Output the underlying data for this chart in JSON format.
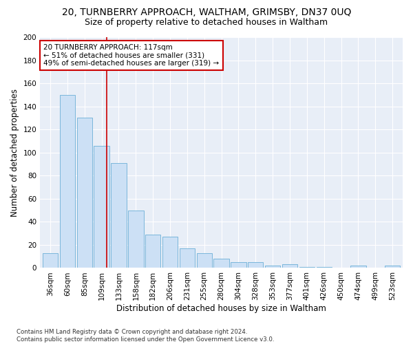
{
  "title": "20, TURNBERRY APPROACH, WALTHAM, GRIMSBY, DN37 0UQ",
  "subtitle": "Size of property relative to detached houses in Waltham",
  "xlabel": "Distribution of detached houses by size in Waltham",
  "ylabel": "Number of detached properties",
  "categories": [
    "36sqm",
    "60sqm",
    "85sqm",
    "109sqm",
    "133sqm",
    "158sqm",
    "182sqm",
    "206sqm",
    "231sqm",
    "255sqm",
    "280sqm",
    "304sqm",
    "328sqm",
    "353sqm",
    "377sqm",
    "401sqm",
    "426sqm",
    "450sqm",
    "474sqm",
    "499sqm",
    "523sqm"
  ],
  "values": [
    13,
    150,
    130,
    106,
    91,
    50,
    29,
    27,
    17,
    13,
    8,
    5,
    5,
    2,
    3,
    1,
    1,
    0,
    2,
    0,
    2
  ],
  "bar_color": "#cce0f5",
  "bar_edge_color": "#6aaed6",
  "vline_color": "#cc0000",
  "annotation_text": "20 TURNBERRY APPROACH: 117sqm\n← 51% of detached houses are smaller (331)\n49% of semi-detached houses are larger (319) →",
  "annotation_box_color": "#ffffff",
  "annotation_box_edge": "#cc0000",
  "ylim": [
    0,
    200
  ],
  "yticks": [
    0,
    20,
    40,
    60,
    80,
    100,
    120,
    140,
    160,
    180,
    200
  ],
  "footer": "Contains HM Land Registry data © Crown copyright and database right 2024.\nContains public sector information licensed under the Open Government Licence v3.0.",
  "title_fontsize": 10,
  "subtitle_fontsize": 9,
  "axis_label_fontsize": 8.5,
  "tick_fontsize": 7.5,
  "background_color": "#ffffff",
  "plot_bg_color": "#e8eef7",
  "grid_color": "#ffffff"
}
